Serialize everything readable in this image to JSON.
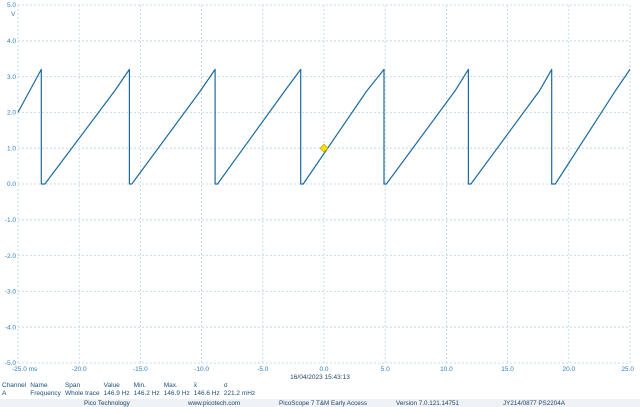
{
  "volt_unit": "V",
  "timestamp": "16/04/2023 15:43:13",
  "measurements": {
    "headers": [
      "Channel",
      "Name",
      "Span",
      "Value",
      "Min.",
      "Max.",
      "x̄",
      "σ"
    ],
    "row": [
      "A",
      "Frequency",
      "Whole trace",
      "146.9 Hz",
      "146.2 Hz",
      "146.9 Hz",
      "146.6 Hz",
      "221.2 mHz"
    ]
  },
  "footer": {
    "company": "Pico Technology",
    "website": "www.picotech.com",
    "product": "PicoScope 7 T&M Early Access",
    "version": "Version 7.0.121.14751",
    "device": "JY214/0877 PS2204A"
  },
  "colors": {
    "trace": "#1b6b9c",
    "axis_text": "#2f7fbf",
    "grid": "#b8d4ea",
    "marker": "#ffe100"
  },
  "chart_data": {
    "type": "line",
    "xlim": [
      -25.0,
      25.0
    ],
    "ylim": [
      -5.0,
      5.0
    ],
    "x_ticks": [
      "-25.0 ms",
      "-20.0",
      "-15.0",
      "-10.0",
      "-5.0",
      "0.0",
      "5.0",
      "10.0",
      "15.0",
      "20.0",
      "25.0"
    ],
    "x_tick_values": [
      -25,
      -20,
      -15,
      -10,
      -5,
      0,
      5,
      10,
      15,
      20,
      25
    ],
    "y_ticks": [
      "5.0",
      "4.0",
      "3.0",
      "2.0",
      "1.0",
      "0.0",
      "-1.0",
      "-2.0",
      "-3.0",
      "-4.0",
      "-5.0"
    ],
    "y_tick_values": [
      5,
      4,
      3,
      2,
      1,
      0,
      -1,
      -2,
      -3,
      -4,
      -5
    ],
    "grid": true,
    "series": [
      {
        "x": [
          -25.0,
          -23.1,
          -23.1,
          -22.8,
          -17.1,
          -15.9,
          -15.9,
          -15.7,
          -10.1,
          -8.9,
          -8.9,
          -8.7,
          -3.2,
          -1.9,
          -1.9,
          -1.7,
          3.5,
          4.9,
          4.9,
          5.1,
          10.7,
          11.8,
          11.8,
          12.0,
          17.6,
          18.6,
          18.6,
          18.9,
          23.8,
          25.0
        ],
        "y": [
          2.0,
          3.2,
          0.0,
          0.0,
          2.6,
          3.2,
          0.0,
          0.0,
          2.6,
          3.2,
          0.0,
          0.0,
          2.6,
          3.2,
          0.0,
          0.0,
          2.6,
          3.2,
          0.0,
          0.0,
          2.6,
          3.2,
          0.0,
          0.0,
          2.6,
          3.2,
          0.0,
          0.0,
          2.6,
          3.2
        ]
      }
    ],
    "trigger_marker": {
      "x": 0.0,
      "y": 1.0
    }
  }
}
